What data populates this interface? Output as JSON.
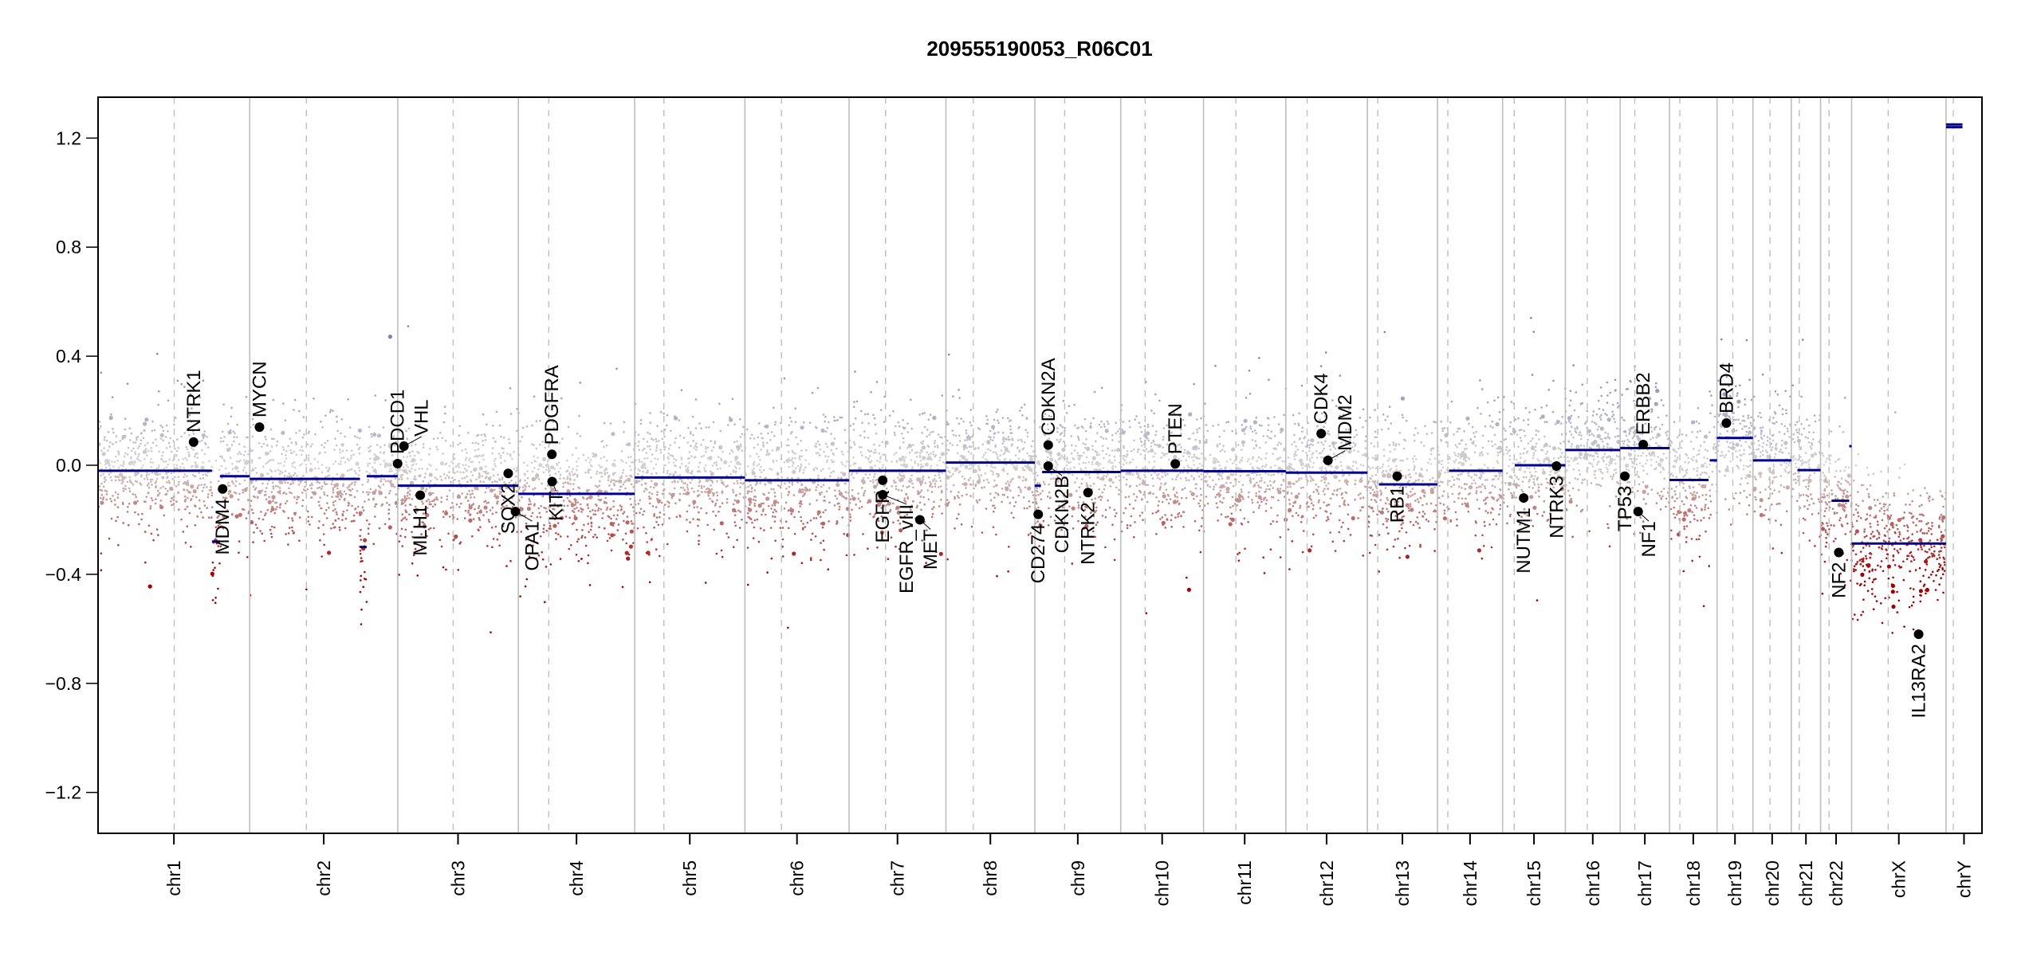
{
  "chart_data": {
    "type": "scatter",
    "title": "209555190053_R06C01",
    "xlabel": "",
    "ylabel": "",
    "ylim": [
      -1.35,
      1.35
    ],
    "yticks": [
      1.2,
      0.8,
      0.4,
      0.0,
      -0.4,
      -0.8,
      -1.2
    ],
    "ytick_labels": [
      "1.2",
      "0.8",
      "0.4",
      "0.0",
      "−0.4",
      "−0.8",
      "−1.2"
    ],
    "x_units": "Mb within chromosome",
    "chromosomes": [
      {
        "name": "chr1",
        "length": 249,
        "centromere": 125
      },
      {
        "name": "chr2",
        "length": 243,
        "centromere": 93
      },
      {
        "name": "chr3",
        "length": 198,
        "centromere": 91
      },
      {
        "name": "chr4",
        "length": 191,
        "centromere": 50
      },
      {
        "name": "chr5",
        "length": 181,
        "centromere": 48
      },
      {
        "name": "chr6",
        "length": 171,
        "centromere": 60
      },
      {
        "name": "chr7",
        "length": 159,
        "centromere": 60
      },
      {
        "name": "chr8",
        "length": 146,
        "centromere": 45
      },
      {
        "name": "chr9",
        "length": 141,
        "centromere": 49
      },
      {
        "name": "chr10",
        "length": 136,
        "centromere": 40
      },
      {
        "name": "chr11",
        "length": 135,
        "centromere": 53
      },
      {
        "name": "chr12",
        "length": 134,
        "centromere": 35
      },
      {
        "name": "chr13",
        "length": 115,
        "centromere": 17
      },
      {
        "name": "chr14",
        "length": 107,
        "centromere": 17
      },
      {
        "name": "chr15",
        "length": 103,
        "centromere": 19
      },
      {
        "name": "chr16",
        "length": 90,
        "centromere": 36
      },
      {
        "name": "chr17",
        "length": 81,
        "centromere": 24
      },
      {
        "name": "chr18",
        "length": 78,
        "centromere": 17
      },
      {
        "name": "chr19",
        "length": 59,
        "centromere": 26
      },
      {
        "name": "chr20",
        "length": 63,
        "centromere": 28
      },
      {
        "name": "chr21",
        "length": 48,
        "centromere": 13
      },
      {
        "name": "chr22",
        "length": 51,
        "centromere": 14
      },
      {
        "name": "chrX",
        "length": 155,
        "centromere": 60
      },
      {
        "name": "chrY",
        "length": 59,
        "centromere": 12
      }
    ],
    "segments": [
      {
        "chr": "chr1",
        "start": 0,
        "end": 187,
        "value": -0.02
      },
      {
        "chr": "chr1",
        "start": 187,
        "end": 200,
        "value": -0.28
      },
      {
        "chr": "chr1",
        "start": 200,
        "end": 249,
        "value": -0.04
      },
      {
        "chr": "chr2",
        "start": 0,
        "end": 181,
        "value": -0.05
      },
      {
        "chr": "chr2",
        "start": 181,
        "end": 192,
        "value": -0.3
      },
      {
        "chr": "chr2",
        "start": 192,
        "end": 243,
        "value": -0.04
      },
      {
        "chr": "chr3",
        "start": 0,
        "end": 198,
        "value": -0.075
      },
      {
        "chr": "chr4",
        "start": 0,
        "end": 191,
        "value": -0.105
      },
      {
        "chr": "chr5",
        "start": 0,
        "end": 181,
        "value": -0.045
      },
      {
        "chr": "chr6",
        "start": 0,
        "end": 171,
        "value": -0.055
      },
      {
        "chr": "chr7",
        "start": 0,
        "end": 159,
        "value": -0.02
      },
      {
        "chr": "chr8",
        "start": 0,
        "end": 146,
        "value": 0.01
      },
      {
        "chr": "chr9",
        "start": 0,
        "end": 10,
        "value": -0.075
      },
      {
        "chr": "chr9",
        "start": 12,
        "end": 141,
        "value": -0.025
      },
      {
        "chr": "chr10",
        "start": 0,
        "end": 136,
        "value": -0.02
      },
      {
        "chr": "chr11",
        "start": 0,
        "end": 135,
        "value": -0.022
      },
      {
        "chr": "chr12",
        "start": 0,
        "end": 134,
        "value": -0.027
      },
      {
        "chr": "chr13",
        "start": 19,
        "end": 115,
        "value": -0.07
      },
      {
        "chr": "chr14",
        "start": 19,
        "end": 107,
        "value": -0.02
      },
      {
        "chr": "chr15",
        "start": 20,
        "end": 103,
        "value": 0.0
      },
      {
        "chr": "chr16",
        "start": 0,
        "end": 90,
        "value": 0.056
      },
      {
        "chr": "chr17",
        "start": 0,
        "end": 81,
        "value": 0.063
      },
      {
        "chr": "chr18",
        "start": 0,
        "end": 64,
        "value": -0.054
      },
      {
        "chr": "chr18",
        "start": 64,
        "end": 66,
        "value": -0.37
      },
      {
        "chr": "chr18",
        "start": 66,
        "end": 78,
        "value": 0.018
      },
      {
        "chr": "chr19",
        "start": 0,
        "end": 59,
        "value": 0.1
      },
      {
        "chr": "chr20",
        "start": 0,
        "end": 63,
        "value": 0.018
      },
      {
        "chr": "chr21",
        "start": 10,
        "end": 48,
        "value": -0.018
      },
      {
        "chr": "chr22",
        "start": 18,
        "end": 47,
        "value": -0.13
      },
      {
        "chr": "chr22",
        "start": 47,
        "end": 51,
        "value": 0.07
      },
      {
        "chr": "chrX",
        "start": 0,
        "end": 155,
        "value": -0.287
      },
      {
        "chr": "chrY",
        "start": 0,
        "end": 27,
        "value": 1.24
      },
      {
        "chr": "chrY",
        "start": 0,
        "end": 27,
        "value": 1.25
      }
    ],
    "genes": [
      {
        "name": "NTRK1",
        "chr": "chr1",
        "pos": 156.8,
        "value": 0.085
      },
      {
        "name": "MDM4",
        "chr": "chr1",
        "pos": 204.5,
        "value": -0.087
      },
      {
        "name": "MYCN",
        "chr": "chr2",
        "pos": 16.0,
        "value": 0.14
      },
      {
        "name": "PDCD1",
        "chr": "chr2",
        "pos": 242.8,
        "value": 0.006
      },
      {
        "name": "VHL",
        "chr": "chr3",
        "pos": 10.2,
        "value": 0.07
      },
      {
        "name": "MLH1",
        "chr": "chr3",
        "pos": 37.0,
        "value": -0.11
      },
      {
        "name": "SOX2",
        "chr": "chr3",
        "pos": 181.4,
        "value": -0.03
      },
      {
        "name": "OPA1",
        "chr": "chr3",
        "pos": 193.3,
        "value": -0.17
      },
      {
        "name": "PDGFRA",
        "chr": "chr4",
        "pos": 55.1,
        "value": 0.04
      },
      {
        "name": "KIT",
        "chr": "chr4",
        "pos": 55.5,
        "value": -0.06
      },
      {
        "name": "EGFR",
        "chr": "chr7",
        "pos": 55.2,
        "value": -0.055
      },
      {
        "name": "EGFR_vIII",
        "chr": "chr7",
        "pos": 55.3,
        "value": -0.108
      },
      {
        "name": "MET",
        "chr": "chr7",
        "pos": 116.3,
        "value": -0.2
      },
      {
        "name": "CD274",
        "chr": "chr9",
        "pos": 5.5,
        "value": -0.18
      },
      {
        "name": "CDKN2A",
        "chr": "chr9",
        "pos": 21.97,
        "value": 0.074
      },
      {
        "name": "CDKN2B",
        "chr": "chr9",
        "pos": 22.0,
        "value": -0.003
      },
      {
        "name": "NTRK2",
        "chr": "chr9",
        "pos": 87.3,
        "value": -0.1
      },
      {
        "name": "PTEN",
        "chr": "chr10",
        "pos": 89.6,
        "value": 0.005
      },
      {
        "name": "CDK4",
        "chr": "chr12",
        "pos": 58.1,
        "value": 0.116
      },
      {
        "name": "MDM2",
        "chr": "chr12",
        "pos": 69.2,
        "value": 0.018
      },
      {
        "name": "RB1",
        "chr": "chr13",
        "pos": 48.9,
        "value": -0.04
      },
      {
        "name": "NUTM1",
        "chr": "chr15",
        "pos": 34.6,
        "value": -0.12
      },
      {
        "name": "NTRK3",
        "chr": "chr15",
        "pos": 88.5,
        "value": -0.003
      },
      {
        "name": "TP53",
        "chr": "chr17",
        "pos": 7.6,
        "value": -0.04
      },
      {
        "name": "NF1",
        "chr": "chr17",
        "pos": 29.5,
        "value": -0.17
      },
      {
        "name": "ERBB2",
        "chr": "chr17",
        "pos": 37.8,
        "value": 0.076
      },
      {
        "name": "BRD4",
        "chr": "chr19",
        "pos": 15.4,
        "value": 0.155
      },
      {
        "name": "NF2",
        "chr": "chr22",
        "pos": 29.9,
        "value": -0.32
      },
      {
        "name": "IL13RA2",
        "chr": "chrX",
        "pos": 110.0,
        "value": -0.62
      }
    ],
    "probe_noise_sd": 0.11,
    "grid": false,
    "legend": "none",
    "colors": {
      "segment": "#00008b",
      "gain": "#7f7fb8",
      "neutral": "#d3d3d3",
      "loss": "#a00000",
      "gene_point": "#000000",
      "chrom_border": "#bebebe",
      "centromere": "#bebebe"
    }
  }
}
